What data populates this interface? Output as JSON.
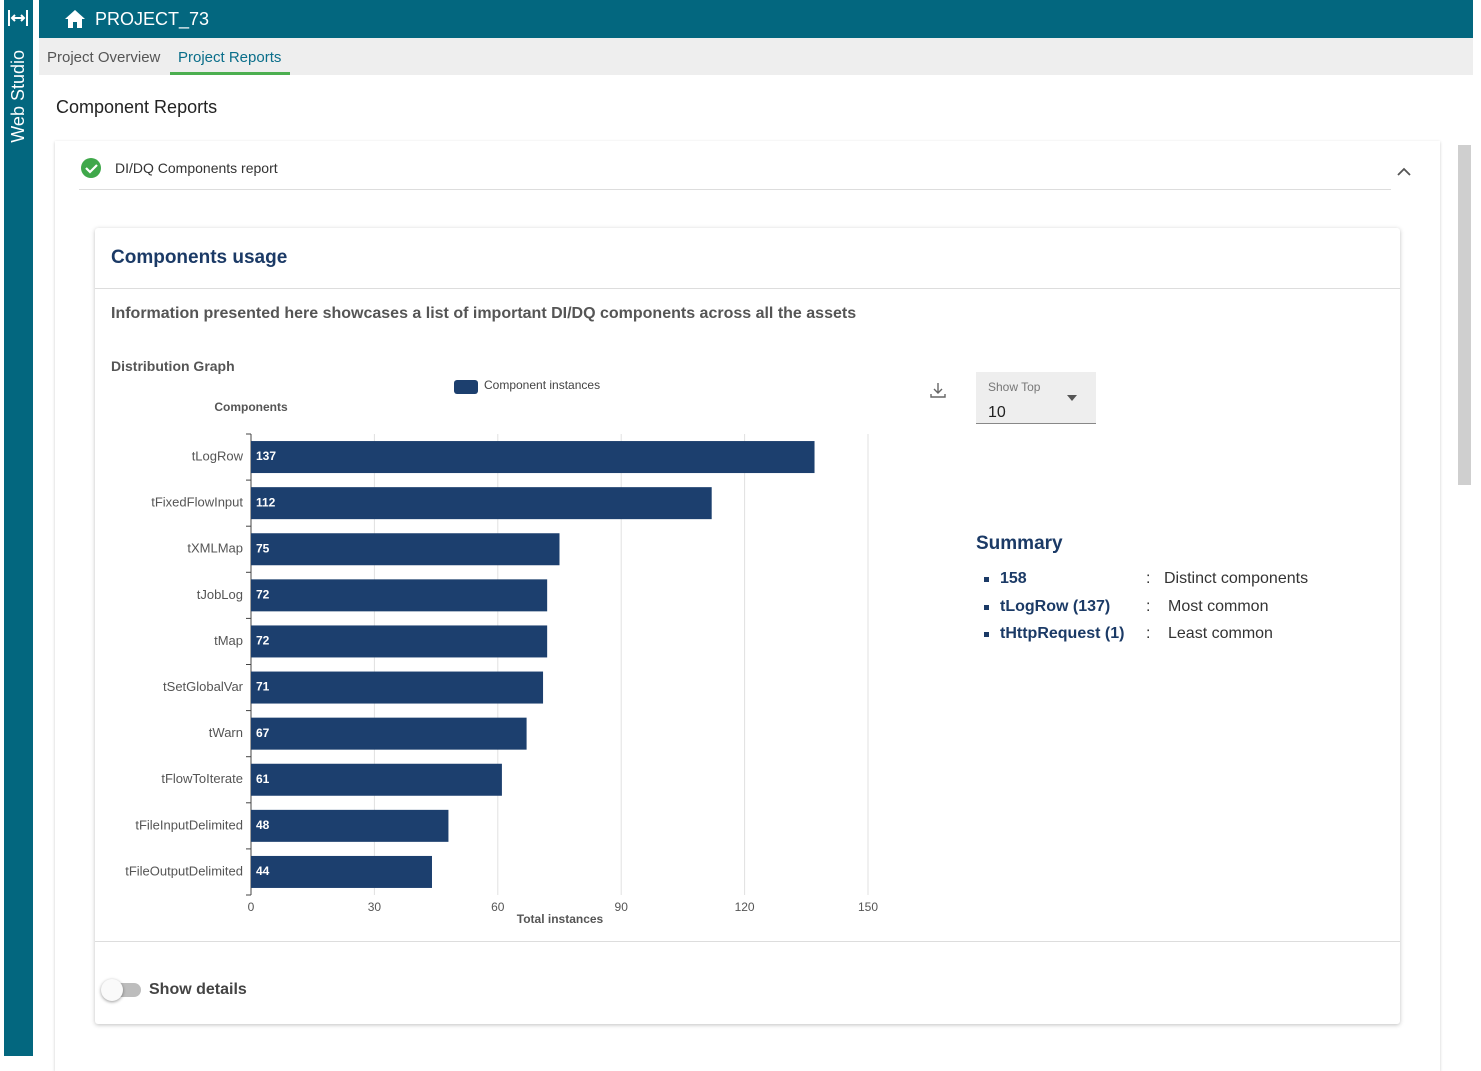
{
  "sidebar": {
    "title": "Web Studio"
  },
  "header": {
    "project": "PROJECT_73"
  },
  "tabs": [
    "Project Overview",
    "Project Reports"
  ],
  "page_title": "Component Reports",
  "panel": {
    "title": "DI/DQ Components report"
  },
  "card": {
    "title": "Components usage",
    "description": "Information presented here showcases a list of important DI/DQ components across all the assets",
    "show_top": {
      "label": "Show Top",
      "value": "10"
    },
    "show_details": "Show details"
  },
  "summary": {
    "title": "Summary",
    "separator": ":",
    "items": [
      {
        "value": "158",
        "label": "Distinct components"
      },
      {
        "value": "tLogRow (137)",
        "label": "Most common"
      },
      {
        "value": "tHttpRequest (1)",
        "label": "Least common"
      }
    ]
  },
  "chart_data": {
    "type": "bar",
    "orientation": "horizontal",
    "title": "Distribution Graph",
    "y_label": "Components",
    "x_label": "Total instances",
    "categories": [
      "tLogRow",
      "tFixedFlowInput",
      "tXMLMap",
      "tJobLog",
      "tMap",
      "tSetGlobalVar",
      "tWarn",
      "tFlowToIterate",
      "tFileInputDelimited",
      "tFileOutputDelimited"
    ],
    "series": [
      {
        "name": "Component instances",
        "color": "#1c3f6e",
        "values": [
          137,
          112,
          75,
          72,
          72,
          71,
          67,
          61,
          48,
          44
        ]
      }
    ],
    "xlim": [
      0,
      150
    ],
    "xticks": [
      0,
      30,
      60,
      90,
      120,
      150
    ],
    "grid": true
  }
}
